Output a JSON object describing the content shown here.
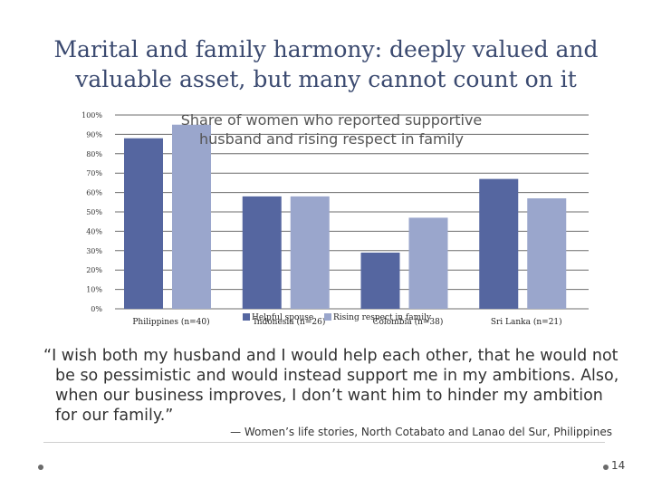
{
  "slide": {
    "title": "Marital and family harmony: deeply valued and valuable asset, but many cannot count on it",
    "quote": "“I wish both my husband and I would help each other, that he would not be so pessimistic and would instead support me in my ambitions. Also, when our business improves, I don’t want him to hinder my ambition for our family.”",
    "attribution": "— Women’s life stories, North Cotabato and Lanao del Sur, Philippines",
    "page_number": "14"
  },
  "chart_data": {
    "type": "bar",
    "title": "Share of women who reported supportive husband and rising respect in family",
    "categories": [
      "Philippines (n=40)",
      "Indonesia (n=26)",
      "Colombia (n=38)",
      "Sri Lanka (n=21)"
    ],
    "series": [
      {
        "name": "Helpful spouse",
        "values": [
          88,
          58,
          29,
          67
        ]
      },
      {
        "name": "Rising respect in family",
        "values": [
          95,
          58,
          47,
          57
        ]
      }
    ],
    "ylim": [
      0,
      100
    ],
    "yticks": [
      "0%",
      "10%",
      "20%",
      "30%",
      "40%",
      "50%",
      "60%",
      "70%",
      "80%",
      "90%",
      "100%"
    ],
    "grid": true,
    "legend": "bottom-center",
    "colors": [
      "#5566a0",
      "#9aa6cc"
    ],
    "gridline_color": "#6e6e6e"
  }
}
